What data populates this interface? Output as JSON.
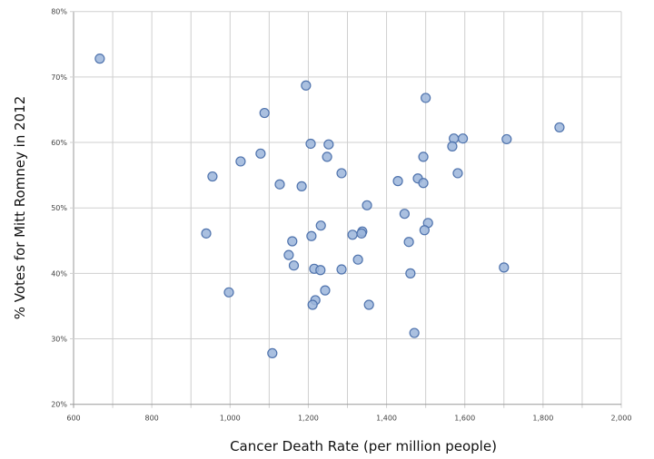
{
  "chart_data": {
    "type": "scatter",
    "title": "",
    "xlabel": "Cancer Death Rate (per million people)",
    "ylabel": "% Votes for Mitt Romney in 2012",
    "xlim": [
      600,
      2000
    ],
    "ylim": [
      20,
      80
    ],
    "x_ticks": [
      "600",
      "800",
      "1,000",
      "1,200",
      "1,400",
      "1,600",
      "1,800",
      "2,000"
    ],
    "y_ticks": [
      "20%",
      "30%",
      "40%",
      "50%",
      "60%",
      "70%",
      "80%"
    ],
    "grid": true,
    "legend": "none",
    "marker_fill": "#9bb5da",
    "marker_edge": "#4f73ad",
    "points": [
      [
        667,
        72.8
      ],
      [
        1194,
        68.7
      ],
      [
        1500,
        66.8
      ],
      [
        1088,
        64.5
      ],
      [
        1842,
        62.3
      ],
      [
        1572,
        60.6
      ],
      [
        1595,
        60.6
      ],
      [
        1707,
        60.5
      ],
      [
        1568,
        59.4
      ],
      [
        1206,
        59.8
      ],
      [
        1252,
        59.7
      ],
      [
        1494,
        57.8
      ],
      [
        1078,
        58.3
      ],
      [
        1027,
        57.1
      ],
      [
        1248,
        57.8
      ],
      [
        1285,
        55.3
      ],
      [
        1582,
        55.3
      ],
      [
        955,
        54.8
      ],
      [
        1127,
        53.6
      ],
      [
        1183,
        53.3
      ],
      [
        1429,
        54.1
      ],
      [
        1480,
        54.5
      ],
      [
        1494,
        53.8
      ],
      [
        1350,
        50.4
      ],
      [
        1446,
        49.1
      ],
      [
        1506,
        47.7
      ],
      [
        1497,
        46.6
      ],
      [
        1232,
        47.3
      ],
      [
        939,
        46.1
      ],
      [
        1208,
        45.7
      ],
      [
        1313,
        45.9
      ],
      [
        1338,
        46.4
      ],
      [
        1336,
        46.1
      ],
      [
        1159,
        44.9
      ],
      [
        1457,
        44.8
      ],
      [
        1150,
        42.8
      ],
      [
        1327,
        42.1
      ],
      [
        1163,
        41.2
      ],
      [
        1215,
        40.7
      ],
      [
        1231,
        40.5
      ],
      [
        1285,
        40.6
      ],
      [
        1461,
        40.0
      ],
      [
        1700,
        40.9
      ],
      [
        997,
        37.1
      ],
      [
        1243,
        37.4
      ],
      [
        1218,
        35.9
      ],
      [
        1211,
        35.2
      ],
      [
        1355,
        35.2
      ],
      [
        1471,
        30.9
      ],
      [
        1108,
        27.8
      ]
    ]
  }
}
